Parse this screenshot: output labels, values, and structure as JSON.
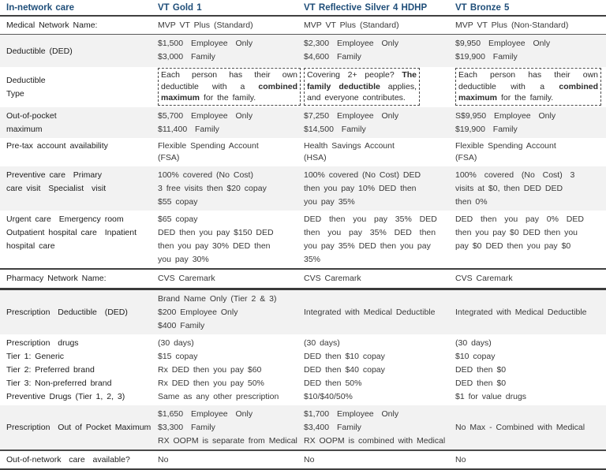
{
  "colors": {
    "header_text": "#1F4E79",
    "row_shade": "#F2F2F2"
  },
  "header": {
    "label": "In-network care",
    "columns": [
      "VT Gold 1",
      "VT Reflective Silver 4 HDHP",
      "VT Bronze 5"
    ]
  },
  "rows": [
    {
      "key": "medical-network-name",
      "shaded": false,
      "label_center": false,
      "label": [
        "Medical Network Name:"
      ],
      "cells": [
        {
          "lines": [
            "MVP VT Plus (Standard)"
          ]
        },
        {
          "lines": [
            "MVP VT Plus (Standard)"
          ]
        },
        {
          "lines": [
            "MVP VT Plus (Non-Standard)"
          ]
        }
      ]
    },
    {
      "key": "deductible",
      "shaded": true,
      "label_center": true,
      "label": [
        "Deductible (DED)"
      ],
      "cells": [
        {
          "lines": [
            "$1,500  Employee  Only",
            "$3,000  Family"
          ]
        },
        {
          "lines": [
            "$2,300  Employee  Only",
            "$4,600  Family"
          ]
        },
        {
          "lines": [
            "$9,950  Employee  Only",
            "$19,900  Family"
          ]
        }
      ]
    },
    {
      "key": "deductible-type",
      "shaded": false,
      "label_center": true,
      "label": [
        "Deductible",
        "Type"
      ],
      "cells": [
        {
          "box": true,
          "parts": [
            {
              "text": "Each person has their own deductible with a ",
              "bold": false
            },
            {
              "text": "combined maximum",
              "bold": true
            },
            {
              "text": " for the family.",
              "bold": false
            }
          ]
        },
        {
          "box": true,
          "parts": [
            {
              "text": "Covering 2+ people? ",
              "bold": false
            },
            {
              "text": "The family deductible",
              "bold": true
            },
            {
              "text": " applies, and everyone contributes.",
              "bold": false
            }
          ]
        },
        {
          "box": true,
          "parts": [
            {
              "text": "Each person has their own deductible with a ",
              "bold": false
            },
            {
              "text": "combined maximum",
              "bold": true
            },
            {
              "text": " for the family.",
              "bold": false
            }
          ]
        }
      ]
    },
    {
      "key": "oop-max",
      "shaded": true,
      "label_center": true,
      "label": [
        "Out-of-pocket",
        "maximum"
      ],
      "cells": [
        {
          "lines": [
            "$5,700  Employee  Only",
            "$11,400  Family"
          ]
        },
        {
          "lines": [
            "$7,250  Employee  Only",
            "$14,500  Family"
          ]
        },
        {
          "lines": [
            "S$9,950  Employee  Only",
            "$19,900  Family"
          ]
        }
      ]
    },
    {
      "key": "pretax",
      "shaded": false,
      "label_center": false,
      "label": [
        "Pre-tax account availability"
      ],
      "cells": [
        {
          "lines": [
            "Flexible Spending Account",
            "(FSA)"
          ]
        },
        {
          "lines": [
            "Health Savings Account",
            "(HSA)"
          ]
        },
        {
          "lines": [
            "Flexible Spending Account",
            "(FSA)"
          ]
        }
      ]
    },
    {
      "key": "preventive",
      "shaded": true,
      "label_center": false,
      "label": [
        "Preventive care  Primary",
        "care visit  Specialist  visit"
      ],
      "cells": [
        {
          "lines": [
            "100% covered (No Cost)",
            "3 free visits then $20 copay",
            "$55 copay"
          ]
        },
        {
          "lines": [
            "100% covered (No Cost) DED",
            "then you pay 10% DED then",
            "you pay 35%"
          ]
        },
        {
          "lines": [
            "100%  covered  (No  Cost)  3",
            "visits at $0, then DED DED",
            "then 0%"
          ]
        }
      ]
    },
    {
      "key": "urgent",
      "shaded": false,
      "label_center": false,
      "label": [
        "Urgent care  Emergency room",
        "Outpatient hospital care  Inpatient",
        "hospital care"
      ],
      "cells": [
        {
          "lines": [
            "$65 copay",
            "DED then you pay $150 DED",
            "then you pay 30% DED then",
            "you pay 30%"
          ]
        },
        {
          "lines": [
            "DED  then  you  pay  35%  DED",
            "then  you  pay  35%  DED  then",
            "you pay 35% DED then you pay",
            "35%"
          ]
        },
        {
          "lines": [
            "DED  then  you  pay  0%  DED",
            "then you pay $0 DED then you",
            "pay $0 DED then you pay $0"
          ]
        }
      ]
    },
    {
      "key": "pharmacy",
      "shaded": false,
      "label_center": false,
      "label": [
        "Pharmacy Network Name:"
      ],
      "cells": [
        {
          "lines": [
            "CVS Caremark"
          ]
        },
        {
          "lines": [
            "CVS Caremark"
          ]
        },
        {
          "lines": [
            "CVS Caremark"
          ]
        }
      ]
    },
    {
      "key": "rx-deductible",
      "shaded": true,
      "label_center": true,
      "label": [
        "Prescription  Deductible  (DED)"
      ],
      "cells": [
        {
          "lines": [
            "Brand Name Only (Tier 2 & 3)",
            "$200 Employee Only",
            "$400 Family"
          ]
        },
        {
          "lines": [
            "Integrated with Medical Deductible"
          ],
          "center": true
        },
        {
          "lines": [
            "Integrated with Medical Deductible"
          ],
          "center": true
        }
      ]
    },
    {
      "key": "rx-drugs",
      "shaded": false,
      "label_center": false,
      "label": [
        "Prescription  drugs",
        "Tier 1: Generic",
        "Tier 2: Preferred brand",
        "Tier 3: Non-preferred brand",
        "Preventive Drugs (Tier 1, 2, 3)"
      ],
      "cells": [
        {
          "lines": [
            "(30 days)",
            "$15 copay",
            "Rx DED then you pay $60",
            "Rx DED then you pay 50%",
            "Same as any other prescription"
          ]
        },
        {
          "lines": [
            "(30 days)",
            "DED then $10 copay",
            "DED then $40 copay",
            "DED then 50%",
            "$10/$40/50%"
          ]
        },
        {
          "lines": [
            "(30 days)",
            "$10 copay",
            "DED then $0",
            "DED then $0",
            "$1 for value drugs"
          ]
        }
      ]
    },
    {
      "key": "rx-oop",
      "shaded": true,
      "label_center": true,
      "label": [
        "Prescription  Out of Pocket Maximum"
      ],
      "cells": [
        {
          "lines": [
            "$1,650  Employee  Only",
            "$3,300  Family",
            "RX OOPM is separate from Medical"
          ]
        },
        {
          "lines": [
            "$1,700  Employee  Only",
            "$3,400  Family",
            "RX OOPM is combined with Medical"
          ]
        },
        {
          "lines": [
            "No Max - Combined with Medical"
          ],
          "center": true
        }
      ]
    },
    {
      "key": "oon",
      "shaded": false,
      "label_center": false,
      "label": [
        "Out-of-network  care  available?"
      ],
      "cells": [
        {
          "lines": [
            "No"
          ]
        },
        {
          "lines": [
            "No"
          ]
        },
        {
          "lines": [
            "No"
          ]
        }
      ]
    }
  ]
}
